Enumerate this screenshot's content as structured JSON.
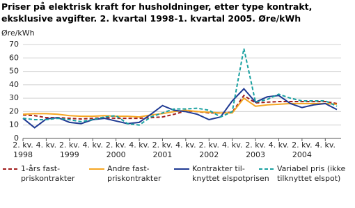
{
  "chart_data": {
    "type": "line",
    "title": "Priser på elektrisk kraft for husholdninger, etter type kontrakt, eksklusive avgifter.  2. kvartal 1998-1. kvartal 2005. Øre/kWh",
    "y_label": "Øre/kWh",
    "categories": [
      "2. kv.",
      null,
      "4. kv.",
      null,
      "2. kv.",
      null,
      "4. kv.",
      null,
      "2. kv.",
      null,
      "4. kv.",
      null,
      "2. kv.",
      null,
      "4. kv.",
      null,
      "2. kv.",
      null,
      "4. kv.",
      null,
      "2. kv.",
      null,
      "4. kv.",
      null,
      "2. kv.",
      null,
      "4. kv.",
      null
    ],
    "category_years": [
      "1998",
      null,
      null,
      null,
      "1999",
      null,
      null,
      null,
      "2000",
      null,
      null,
      null,
      "2001",
      null,
      null,
      null,
      "2002",
      null,
      null,
      null,
      "2003",
      null,
      null,
      null,
      "2004",
      null,
      null,
      null
    ],
    "ylim": [
      0,
      70
    ],
    "yticks": [
      0,
      10,
      20,
      30,
      40,
      50,
      60,
      70
    ],
    "grid": true,
    "series": [
      {
        "name": "1-års fast-\npriskontrakter",
        "color": "#a01c1c",
        "dash": "5,3",
        "values": [
          17.5,
          17,
          15.5,
          15.5,
          15,
          14.5,
          15,
          15.5,
          15,
          15,
          15,
          15.5,
          16,
          18,
          20.5,
          20,
          19,
          19,
          19.5,
          32,
          26.5,
          27,
          27.5,
          27.5,
          27.5,
          27.5,
          27.5,
          26
        ]
      },
      {
        "name": "Andre fast-\npriskontrakter",
        "color": "#f5a623",
        "dash": "none",
        "values": [
          18,
          18.5,
          18.5,
          18,
          17,
          16.5,
          16.5,
          17,
          16.5,
          16.5,
          16,
          17.5,
          18.5,
          20,
          21,
          20,
          19.5,
          19,
          19,
          30,
          24,
          25,
          25.5,
          26,
          26,
          26,
          26,
          25.5
        ]
      },
      {
        "name": "Kontrakter til-\nknyttet elspotprisen",
        "color": "#1f3a93",
        "dash": "none",
        "values": [
          15,
          8,
          14.5,
          15.5,
          12,
          11,
          14,
          15,
          13,
          11,
          12,
          18,
          24.5,
          21,
          20,
          18,
          14,
          16,
          28,
          37,
          27,
          31,
          32,
          26,
          23,
          25,
          26,
          21.5
        ]
      },
      {
        "name": "Variabel pris (ikke\ntilknyttet elspot)",
        "color": "#18a0a0",
        "dash": "5,3",
        "values": [
          15,
          14,
          14,
          15,
          14,
          12.5,
          14,
          16,
          17,
          11,
          10,
          16,
          19,
          22,
          22,
          22.5,
          21,
          16,
          20,
          67,
          27,
          29,
          33,
          30,
          28,
          28,
          28,
          24
        ]
      }
    ]
  }
}
